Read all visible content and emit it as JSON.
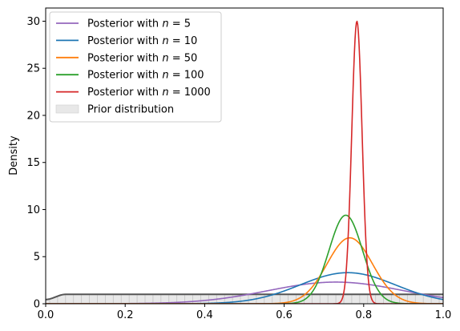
{
  "chart_data": {
    "type": "line",
    "title": "",
    "xlabel": "",
    "ylabel": "Density",
    "xlim": [
      0.0,
      1.0
    ],
    "ylim": [
      0,
      31.4
    ],
    "x_ticks": [
      "0.0",
      "0.2",
      "0.4",
      "0.6",
      "0.8",
      "1.0"
    ],
    "y_ticks": [
      "0",
      "5",
      "10",
      "15",
      "20",
      "25",
      "30"
    ],
    "grid": false,
    "legend_position": "top-left",
    "series": [
      {
        "name": "Posterior with n = 5",
        "legend_prefix": "Posterior with ",
        "legend_var": "n",
        "legend_value": "5",
        "color": "#9467bd",
        "peak_x": 0.73,
        "peak_y": 2.3,
        "sd": 0.17
      },
      {
        "name": "Posterior with n = 10",
        "legend_prefix": "Posterior with ",
        "legend_var": "n",
        "legend_value": "10",
        "color": "#1f77b4",
        "peak_x": 0.76,
        "peak_y": 3.3,
        "sd": 0.12
      },
      {
        "name": "Posterior with n = 50",
        "legend_prefix": "Posterior with ",
        "legend_var": "n",
        "legend_value": "50",
        "color": "#ff7f0e",
        "peak_x": 0.765,
        "peak_y": 7.0,
        "sd": 0.057
      },
      {
        "name": "Posterior with n = 100",
        "legend_prefix": "Posterior with ",
        "legend_var": "n",
        "legend_value": "100",
        "color": "#2ca02c",
        "peak_x": 0.755,
        "peak_y": 9.4,
        "sd": 0.042
      },
      {
        "name": "Posterior with n = 1000",
        "legend_prefix": "Posterior with ",
        "legend_var": "n",
        "legend_value": "1000",
        "color": "#d62728",
        "peak_x": 0.783,
        "peak_y": 30.0,
        "sd": 0.013
      }
    ],
    "prior": {
      "name": "Prior distribution",
      "color": "#555555",
      "fill": "#e8e8e8",
      "plateau": 1.0,
      "edge_x": 0.05,
      "start_y": 0.45
    }
  }
}
